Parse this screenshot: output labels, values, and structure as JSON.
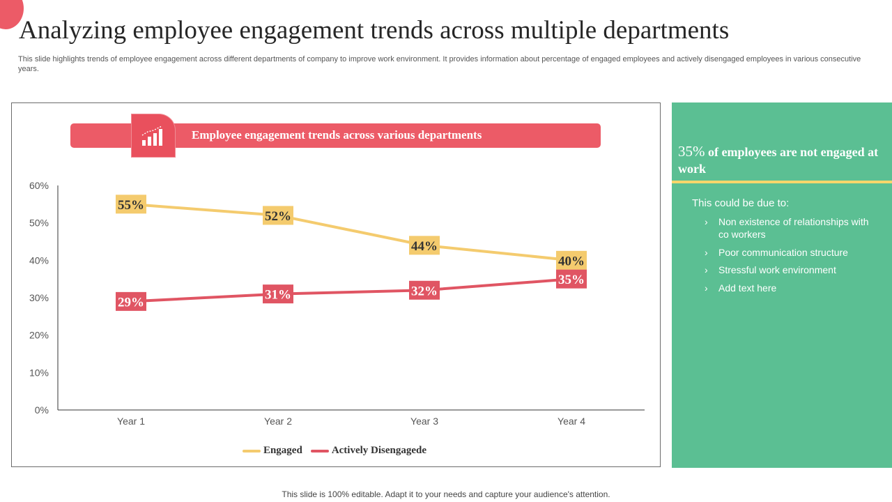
{
  "title": "Analyzing employee engagement trends across multiple departments",
  "subtitle": "This slide highlights trends of employee engagement across different departments of company to improve work environment. It provides information about percentage of engaged employees and actively disengaged employees in various consecutive years.",
  "chart_banner_title": "Employee engagement trends across various departments",
  "colors": {
    "accent": "#ec5b67",
    "engaged": "#f4cb6e",
    "disengaged": "#e05563",
    "panel": "#5bbf93",
    "divider": "#f6d66b"
  },
  "chart_data": {
    "type": "line",
    "categories": [
      "Year 1",
      "Year 2",
      "Year 3",
      "Year 4"
    ],
    "series": [
      {
        "name": "Engaged",
        "values": [
          55,
          52,
          44,
          40
        ],
        "labels": [
          "55%",
          "52%",
          "44%",
          "40%"
        ],
        "color": "#f4cb6e"
      },
      {
        "name": "Actively Disengagede",
        "values": [
          29,
          31,
          32,
          35
        ],
        "labels": [
          "29%",
          "31%",
          "32%",
          "35%"
        ],
        "color": "#e05563"
      }
    ],
    "y_ticks": [
      "0%",
      "10%",
      "20%",
      "30%",
      "40%",
      "50%",
      "60%"
    ],
    "ylim": [
      0,
      60
    ],
    "grid": false,
    "legend": "bottom"
  },
  "side_panel": {
    "headline_pct": "35%",
    "headline_rest": " of employees are not engaged at work",
    "intro": "This could be due to:",
    "items": [
      "Non existence of relationships with co workers",
      "Poor communication structure",
      "Stressful work environment",
      "Add text here"
    ],
    "bullet_glyph": "›"
  },
  "footer": "This slide is 100% editable. Adapt it to your needs and capture your audience's attention."
}
